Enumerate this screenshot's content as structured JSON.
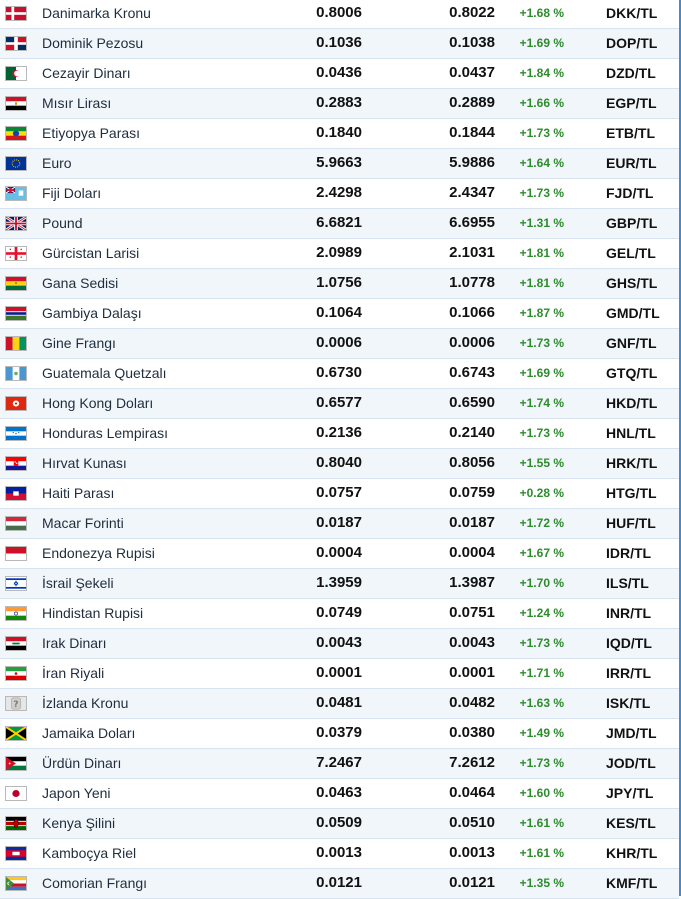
{
  "rates": [
    {
      "flag": "denmark-flag-icon",
      "name": "Danimarka Kronu",
      "buy": "0.8006",
      "sell": "0.8022",
      "change": "+1.68 %",
      "code": "DKK/TL"
    },
    {
      "flag": "dominican-flag-icon",
      "name": "Dominik Pezosu",
      "buy": "0.1036",
      "sell": "0.1038",
      "change": "+1.69 %",
      "code": "DOP/TL"
    },
    {
      "flag": "algeria-flag-icon",
      "name": "Cezayir Dinarı",
      "buy": "0.0436",
      "sell": "0.0437",
      "change": "+1.84 %",
      "code": "DZD/TL"
    },
    {
      "flag": "egypt-flag-icon",
      "name": "Mısır Lirası",
      "buy": "0.2883",
      "sell": "0.2889",
      "change": "+1.66 %",
      "code": "EGP/TL"
    },
    {
      "flag": "ethiopia-flag-icon",
      "name": "Etiyopya Parası",
      "buy": "0.1840",
      "sell": "0.1844",
      "change": "+1.73 %",
      "code": "ETB/TL"
    },
    {
      "flag": "eu-flag-icon",
      "name": "Euro",
      "buy": "5.9663",
      "sell": "5.9886",
      "change": "+1.64 %",
      "code": "EUR/TL"
    },
    {
      "flag": "fiji-flag-icon",
      "name": "Fiji Doları",
      "buy": "2.4298",
      "sell": "2.4347",
      "change": "+1.73 %",
      "code": "FJD/TL"
    },
    {
      "flag": "uk-flag-icon",
      "name": "Pound",
      "buy": "6.6821",
      "sell": "6.6955",
      "change": "+1.31 %",
      "code": "GBP/TL"
    },
    {
      "flag": "georgia-flag-icon",
      "name": "Gürcistan Larisi",
      "buy": "2.0989",
      "sell": "2.1031",
      "change": "+1.81 %",
      "code": "GEL/TL"
    },
    {
      "flag": "ghana-flag-icon",
      "name": "Gana Sedisi",
      "buy": "1.0756",
      "sell": "1.0778",
      "change": "+1.81 %",
      "code": "GHS/TL"
    },
    {
      "flag": "gambia-flag-icon",
      "name": "Gambiya Dalaşı",
      "buy": "0.1064",
      "sell": "0.1066",
      "change": "+1.87 %",
      "code": "GMD/TL"
    },
    {
      "flag": "guinea-flag-icon",
      "name": "Gine Frangı",
      "buy": "0.0006",
      "sell": "0.0006",
      "change": "+1.73 %",
      "code": "GNF/TL"
    },
    {
      "flag": "guatemala-flag-icon",
      "name": "Guatemala Quetzalı",
      "buy": "0.6730",
      "sell": "0.6743",
      "change": "+1.69 %",
      "code": "GTQ/TL"
    },
    {
      "flag": "hongkong-flag-icon",
      "name": "Hong Kong Doları",
      "buy": "0.6577",
      "sell": "0.6590",
      "change": "+1.74 %",
      "code": "HKD/TL"
    },
    {
      "flag": "honduras-flag-icon",
      "name": "Honduras Lempirası",
      "buy": "0.2136",
      "sell": "0.2140",
      "change": "+1.73 %",
      "code": "HNL/TL"
    },
    {
      "flag": "croatia-flag-icon",
      "name": "Hırvat Kunası",
      "buy": "0.8040",
      "sell": "0.8056",
      "change": "+1.55 %",
      "code": "HRK/TL"
    },
    {
      "flag": "haiti-flag-icon",
      "name": "Haiti Parası",
      "buy": "0.0757",
      "sell": "0.0759",
      "change": "+0.28 %",
      "code": "HTG/TL"
    },
    {
      "flag": "hungary-flag-icon",
      "name": "Macar Forinti",
      "buy": "0.0187",
      "sell": "0.0187",
      "change": "+1.72 %",
      "code": "HUF/TL"
    },
    {
      "flag": "indonesia-flag-icon",
      "name": "Endonezya Rupisi",
      "buy": "0.0004",
      "sell": "0.0004",
      "change": "+1.67 %",
      "code": "IDR/TL"
    },
    {
      "flag": "israel-flag-icon",
      "name": "İsrail Şekeli",
      "buy": "1.3959",
      "sell": "1.3987",
      "change": "+1.70 %",
      "code": "ILS/TL"
    },
    {
      "flag": "india-flag-icon",
      "name": "Hindistan Rupisi",
      "buy": "0.0749",
      "sell": "0.0751",
      "change": "+1.24 %",
      "code": "INR/TL"
    },
    {
      "flag": "iraq-flag-icon",
      "name": "Irak Dinarı",
      "buy": "0.0043",
      "sell": "0.0043",
      "change": "+1.73 %",
      "code": "IQD/TL"
    },
    {
      "flag": "iran-flag-icon",
      "name": "İran Riyali",
      "buy": "0.0001",
      "sell": "0.0001",
      "change": "+1.71 %",
      "code": "IRR/TL"
    },
    {
      "flag": "unknown-flag-icon",
      "name": "İzlanda Kronu",
      "buy": "0.0481",
      "sell": "0.0482",
      "change": "+1.63 %",
      "code": "ISK/TL"
    },
    {
      "flag": "jamaica-flag-icon",
      "name": "Jamaika Doları",
      "buy": "0.0379",
      "sell": "0.0380",
      "change": "+1.49 %",
      "code": "JMD/TL"
    },
    {
      "flag": "jordan-flag-icon",
      "name": "Ürdün Dinarı",
      "buy": "7.2467",
      "sell": "7.2612",
      "change": "+1.73 %",
      "code": "JOD/TL"
    },
    {
      "flag": "japan-flag-icon",
      "name": "Japon Yeni",
      "buy": "0.0463",
      "sell": "0.0464",
      "change": "+1.60 %",
      "code": "JPY/TL"
    },
    {
      "flag": "kenya-flag-icon",
      "name": "Kenya Şilini",
      "buy": "0.0509",
      "sell": "0.0510",
      "change": "+1.61 %",
      "code": "KES/TL"
    },
    {
      "flag": "cambodia-flag-icon",
      "name": "Kamboçya Riel",
      "buy": "0.0013",
      "sell": "0.0013",
      "change": "+1.61 %",
      "code": "KHR/TL"
    },
    {
      "flag": "comoros-flag-icon",
      "name": "Comorian Frangı",
      "buy": "0.0121",
      "sell": "0.0121",
      "change": "+1.35 %",
      "code": "KMF/TL"
    }
  ],
  "colors": {
    "positive": "#2e8b2e",
    "row_alt": "#f1f6fb",
    "row_border": "#d7e3ef",
    "frame_border": "#4a89c8"
  }
}
